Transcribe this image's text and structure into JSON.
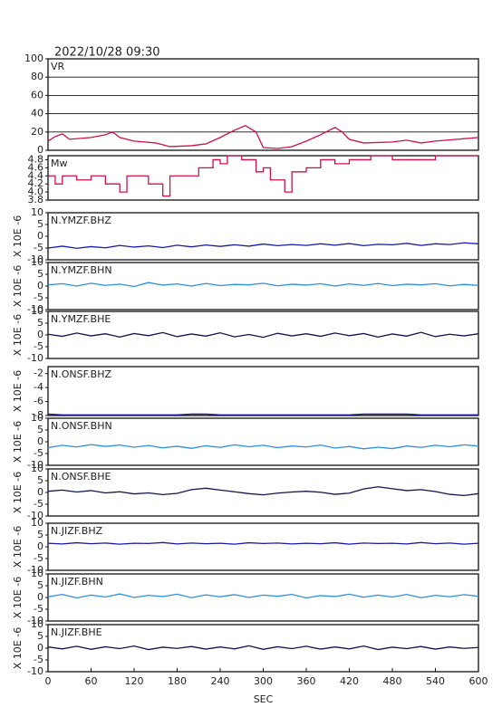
{
  "heading": "2022/10/28 09:30",
  "chart_data": [
    {
      "type": "line",
      "title": "VR",
      "color": "#d01048",
      "grid": true,
      "xlim": [
        0,
        600
      ],
      "ylim": [
        0,
        100
      ],
      "yticks": [
        0,
        20,
        40,
        60,
        80,
        100
      ],
      "x": [
        0,
        10,
        20,
        30,
        60,
        80,
        90,
        100,
        120,
        150,
        170,
        200,
        220,
        240,
        260,
        275,
        290,
        300,
        320,
        340,
        360,
        380,
        400,
        410,
        420,
        440,
        480,
        500,
        520,
        540,
        570,
        600
      ],
      "values": [
        10,
        15,
        18,
        12,
        14,
        17,
        20,
        14,
        10,
        8,
        4,
        5,
        7,
        14,
        22,
        27,
        20,
        3,
        2,
        4,
        10,
        17,
        25,
        20,
        12,
        8,
        9,
        11,
        8,
        10,
        12,
        14
      ]
    },
    {
      "type": "step",
      "title": "Mw",
      "color": "#d01048",
      "grid": false,
      "xlim": [
        0,
        600
      ],
      "ylim": [
        3.8,
        4.9
      ],
      "yticks": [
        3.8,
        {
          "value": 4,
          "label": "4.0"
        },
        4.2,
        4.4,
        4.6,
        4.8
      ],
      "x": [
        0,
        10,
        20,
        40,
        60,
        80,
        100,
        110,
        140,
        160,
        170,
        200,
        210,
        220,
        230,
        240,
        250,
        270,
        290,
        300,
        310,
        330,
        340,
        360,
        380,
        400,
        420,
        450,
        480,
        540,
        600
      ],
      "values": [
        4.4,
        4.2,
        4.4,
        4.3,
        4.4,
        4.2,
        4.0,
        4.4,
        4.2,
        3.9,
        4.4,
        4.4,
        4.6,
        4.6,
        4.8,
        4.7,
        4.9,
        4.8,
        4.5,
        4.6,
        4.3,
        4.0,
        4.5,
        4.6,
        4.8,
        4.7,
        4.8,
        4.9,
        4.8,
        4.9,
        4.9
      ]
    },
    {
      "type": "line",
      "title": "N.YMZF.BHZ",
      "ylabel": "X 10E -6",
      "color": "#1a1aa8",
      "xlim": [
        0,
        600
      ],
      "ylim": [
        -10,
        10
      ],
      "yticks": [
        -10,
        -5,
        0,
        5,
        10
      ],
      "x": [
        0,
        20,
        40,
        60,
        80,
        100,
        120,
        140,
        160,
        180,
        200,
        220,
        240,
        260,
        280,
        300,
        320,
        340,
        360,
        380,
        400,
        420,
        440,
        460,
        480,
        500,
        520,
        540,
        560,
        580,
        600
      ],
      "values": [
        -5,
        -4.2,
        -5.1,
        -4.4,
        -4.9,
        -3.9,
        -4.6,
        -4.1,
        -4.8,
        -3.8,
        -4.5,
        -3.7,
        -4.3,
        -3.6,
        -4.2,
        -3.3,
        -4.0,
        -3.5,
        -3.9,
        -3.2,
        -3.8,
        -3.1,
        -4.0,
        -3.4,
        -3.6,
        -3.0,
        -3.9,
        -3.2,
        -3.5,
        -2.8,
        -3.2
      ]
    },
    {
      "type": "line",
      "title": "N.YMZF.BHN",
      "ylabel": "X 10E -6",
      "color": "#2a90e0",
      "xlim": [
        0,
        600
      ],
      "ylim": [
        -10,
        10
      ],
      "yticks": [
        -10,
        -5,
        0,
        5,
        10
      ],
      "x": [
        0,
        20,
        40,
        60,
        80,
        100,
        120,
        140,
        160,
        180,
        200,
        220,
        240,
        260,
        280,
        300,
        320,
        340,
        360,
        380,
        400,
        420,
        440,
        460,
        480,
        500,
        520,
        540,
        560,
        580,
        600
      ],
      "values": [
        0.5,
        1,
        0,
        1.2,
        0.3,
        0.8,
        -0.2,
        1.5,
        0.4,
        0.9,
        0,
        1.1,
        0.2,
        0.7,
        0.5,
        1.2,
        0.1,
        0.8,
        0.4,
        1,
        0,
        0.9,
        0.3,
        1.1,
        0.2,
        0.8,
        0.5,
        1,
        0.1,
        0.7,
        0.3
      ]
    },
    {
      "type": "line",
      "title": "N.YMZF.BHE",
      "ylabel": "X 10E -6",
      "color": "#141450",
      "xlim": [
        0,
        600
      ],
      "ylim": [
        -10,
        10
      ],
      "yticks": [
        -10,
        -5,
        0,
        5,
        10
      ],
      "x": [
        0,
        20,
        40,
        60,
        80,
        100,
        120,
        140,
        160,
        180,
        200,
        220,
        240,
        260,
        280,
        300,
        320,
        340,
        360,
        380,
        400,
        420,
        440,
        460,
        480,
        500,
        520,
        540,
        560,
        580,
        600
      ],
      "values": [
        0.3,
        -0.6,
        0.8,
        -0.4,
        0.5,
        -0.9,
        0.6,
        -0.3,
        1,
        -0.7,
        0.4,
        -0.5,
        0.9,
        -0.8,
        0.2,
        -1,
        0.7,
        -0.4,
        0.5,
        -0.6,
        0.8,
        -0.3,
        0.6,
        -0.9,
        0.4,
        -0.5,
        1.1,
        -0.7,
        0.3,
        -0.4,
        0.5
      ]
    },
    {
      "type": "line",
      "title": "N.ONSF.BHZ",
      "ylabel": "X 10E -6",
      "color": "#1a1aa8",
      "xlim": [
        0,
        600
      ],
      "ylim": [
        -8,
        -1
      ],
      "yticks": [
        -8,
        -6,
        -4,
        -2
      ],
      "x": [
        0,
        20,
        40,
        60,
        80,
        100,
        120,
        140,
        160,
        180,
        200,
        220,
        240,
        260,
        280,
        300,
        320,
        340,
        360,
        380,
        400,
        420,
        440,
        460,
        480,
        500,
        520,
        540,
        560,
        580,
        600
      ],
      "values": [
        -7.8,
        -7.9,
        -7.9,
        -7.9,
        -7.9,
        -7.9,
        -7.9,
        -7.9,
        -7.9,
        -7.9,
        -7.8,
        -7.8,
        -7.9,
        -7.9,
        -7.9,
        -7.9,
        -7.9,
        -7.9,
        -7.9,
        -7.9,
        -7.9,
        -7.9,
        -7.8,
        -7.8,
        -7.8,
        -7.8,
        -7.9,
        -7.9,
        -7.9,
        -7.9,
        -7.9
      ]
    },
    {
      "type": "line",
      "title": "N.ONSF.BHN",
      "ylabel": "X 10E -6",
      "color": "#2a90e0",
      "xlim": [
        0,
        600
      ],
      "ylim": [
        -10,
        10
      ],
      "yticks": [
        -10,
        -5,
        0,
        5,
        10
      ],
      "x": [
        0,
        20,
        40,
        60,
        80,
        100,
        120,
        140,
        160,
        180,
        200,
        220,
        240,
        260,
        280,
        300,
        320,
        340,
        360,
        380,
        400,
        420,
        440,
        460,
        480,
        500,
        520,
        540,
        560,
        580,
        600
      ],
      "values": [
        -2.5,
        -1.5,
        -2.2,
        -1.2,
        -2,
        -1.4,
        -2.3,
        -1.6,
        -2.6,
        -1.9,
        -2.8,
        -1.7,
        -2.4,
        -1.3,
        -2.1,
        -1.5,
        -2.5,
        -1.8,
        -2.2,
        -1.4,
        -2.7,
        -2.0,
        -3.0,
        -2.3,
        -2.9,
        -1.8,
        -2.4,
        -1.5,
        -2.1,
        -1.3,
        -1.8
      ]
    },
    {
      "type": "line",
      "title": "N.ONSF.BHE",
      "ylabel": "X 10E -6",
      "color": "#141450",
      "xlim": [
        0,
        600
      ],
      "ylim": [
        -10,
        10
      ],
      "yticks": [
        -10,
        -5,
        0,
        5,
        10
      ],
      "x": [
        0,
        20,
        40,
        60,
        80,
        100,
        120,
        140,
        160,
        180,
        200,
        220,
        240,
        260,
        280,
        300,
        320,
        340,
        360,
        380,
        400,
        420,
        440,
        460,
        480,
        500,
        520,
        540,
        560,
        580,
        600
      ],
      "values": [
        0.5,
        1,
        0.2,
        0.8,
        -0.2,
        0.3,
        -0.6,
        -0.2,
        -0.9,
        -0.4,
        1.2,
        1.8,
        1.0,
        0.3,
        -0.5,
        -1.0,
        -0.3,
        0.2,
        0.5,
        0.1,
        -0.8,
        -0.3,
        1.5,
        2.4,
        1.6,
        0.8,
        1.2,
        0.4,
        -0.8,
        -1.3,
        -0.5
      ]
    },
    {
      "type": "line",
      "title": "N.JIZF.BHZ",
      "ylabel": "X 10E -6",
      "color": "#1a1aa8",
      "xlim": [
        0,
        600
      ],
      "ylim": [
        -10,
        10
      ],
      "yticks": [
        -10,
        -5,
        0,
        5,
        10
      ],
      "x": [
        0,
        20,
        40,
        60,
        80,
        100,
        120,
        140,
        160,
        180,
        200,
        220,
        240,
        260,
        280,
        300,
        320,
        340,
        360,
        380,
        400,
        420,
        440,
        460,
        480,
        500,
        520,
        540,
        560,
        580,
        600
      ],
      "values": [
        1.5,
        1.2,
        1.7,
        1.3,
        1.6,
        1.1,
        1.5,
        1.4,
        1.8,
        1.2,
        1.6,
        1.3,
        1.5,
        1.1,
        1.7,
        1.4,
        1.6,
        1.2,
        1.5,
        1.3,
        1.7,
        1.1,
        1.6,
        1.4,
        1.5,
        1.2,
        1.8,
        1.3,
        1.6,
        1.1,
        1.5
      ]
    },
    {
      "type": "line",
      "title": "N.JIZF.BHN",
      "ylabel": "X 10E -6",
      "color": "#2a90e0",
      "xlim": [
        0,
        600
      ],
      "ylim": [
        -10,
        10
      ],
      "yticks": [
        -10,
        -5,
        0,
        5,
        10
      ],
      "x": [
        0,
        20,
        40,
        60,
        80,
        100,
        120,
        140,
        160,
        180,
        200,
        220,
        240,
        260,
        280,
        300,
        320,
        340,
        360,
        380,
        400,
        420,
        440,
        460,
        480,
        500,
        520,
        540,
        560,
        580,
        600
      ],
      "values": [
        0.3,
        1.3,
        -0.2,
        1.0,
        0.2,
        1.5,
        0,
        0.9,
        0.4,
        1.4,
        -0.1,
        1.1,
        0.3,
        1.2,
        0,
        1.0,
        0.5,
        1.3,
        -0.2,
        0.8,
        0.4,
        1.4,
        0.1,
        1.0,
        0.2,
        1.3,
        -0.1,
        0.9,
        0.3,
        1.2,
        0.5
      ]
    },
    {
      "type": "line",
      "title": "N.JIZF.BHE",
      "ylabel": "X 10E -6",
      "color": "#141450",
      "xlim": [
        0,
        600
      ],
      "ylim": [
        -10,
        10
      ],
      "yticks": [
        -10,
        -5,
        0,
        5,
        10
      ],
      "xticks": [
        0,
        60,
        120,
        180,
        240,
        300,
        360,
        420,
        480,
        540,
        600
      ],
      "xlabel": "SEC",
      "x": [
        0,
        20,
        40,
        60,
        80,
        100,
        120,
        140,
        160,
        180,
        200,
        220,
        240,
        260,
        280,
        300,
        320,
        340,
        360,
        380,
        400,
        420,
        440,
        460,
        480,
        500,
        520,
        540,
        560,
        580,
        600
      ],
      "values": [
        0.5,
        -0.3,
        0.8,
        -0.5,
        0.6,
        -0.2,
        0.9,
        -0.6,
        0.4,
        -0.1,
        0.7,
        -0.4,
        0.5,
        -0.3,
        1.0,
        -0.5,
        0.6,
        -0.2,
        0.8,
        -0.4,
        0.5,
        -0.3,
        0.9,
        -0.6,
        0.4,
        -0.2,
        0.7,
        -0.4,
        0.5,
        -0.1,
        0.3
      ]
    }
  ]
}
